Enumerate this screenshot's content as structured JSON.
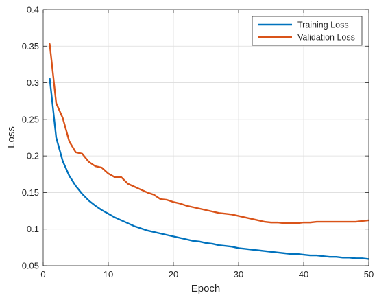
{
  "chart_data": {
    "type": "line",
    "xlabel": "Epoch",
    "ylabel": "Loss",
    "xlim": [
      0,
      50
    ],
    "ylim": [
      0.05,
      0.4
    ],
    "xticks": [
      0,
      10,
      20,
      30,
      40,
      50
    ],
    "yticks": [
      0.05,
      0.1,
      0.15,
      0.2,
      0.25,
      0.3,
      0.35,
      0.4
    ],
    "ytick_labels": [
      "0.05",
      "0.1",
      "0.15",
      "0.2",
      "0.25",
      "0.3",
      "0.35",
      "0.4"
    ],
    "grid": true,
    "legend_position": "top-right",
    "x": [
      1,
      2,
      3,
      4,
      5,
      6,
      7,
      8,
      9,
      10,
      11,
      12,
      13,
      14,
      15,
      16,
      17,
      18,
      19,
      20,
      21,
      22,
      23,
      24,
      25,
      26,
      27,
      28,
      29,
      30,
      31,
      32,
      33,
      34,
      35,
      36,
      37,
      38,
      39,
      40,
      41,
      42,
      43,
      44,
      45,
      46,
      47,
      48,
      49,
      50
    ],
    "series": [
      {
        "name": "Training Loss",
        "color": "#0072BD",
        "values": [
          0.306,
          0.225,
          0.193,
          0.173,
          0.159,
          0.148,
          0.139,
          0.132,
          0.126,
          0.121,
          0.116,
          0.112,
          0.108,
          0.104,
          0.101,
          0.098,
          0.096,
          0.094,
          0.092,
          0.09,
          0.088,
          0.086,
          0.084,
          0.083,
          0.081,
          0.08,
          0.078,
          0.077,
          0.076,
          0.074,
          0.073,
          0.072,
          0.071,
          0.07,
          0.069,
          0.068,
          0.067,
          0.066,
          0.066,
          0.065,
          0.064,
          0.064,
          0.063,
          0.062,
          0.062,
          0.061,
          0.061,
          0.06,
          0.06,
          0.059
        ]
      },
      {
        "name": "Validation Loss",
        "color": "#D95319",
        "values": [
          0.353,
          0.272,
          0.252,
          0.22,
          0.205,
          0.203,
          0.192,
          0.186,
          0.184,
          0.176,
          0.171,
          0.171,
          0.162,
          0.158,
          0.154,
          0.15,
          0.147,
          0.141,
          0.14,
          0.137,
          0.135,
          0.132,
          0.13,
          0.128,
          0.126,
          0.124,
          0.122,
          0.121,
          0.12,
          0.118,
          0.116,
          0.114,
          0.112,
          0.11,
          0.109,
          0.109,
          0.108,
          0.108,
          0.108,
          0.109,
          0.109,
          0.11,
          0.11,
          0.11,
          0.11,
          0.11,
          0.11,
          0.11,
          0.111,
          0.112
        ]
      }
    ]
  }
}
